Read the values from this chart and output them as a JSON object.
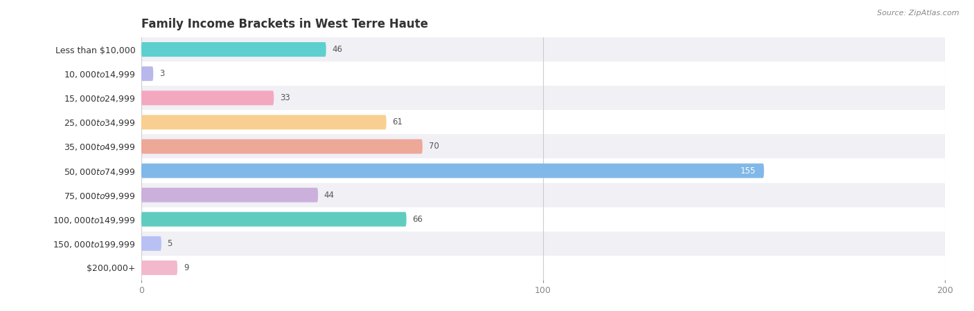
{
  "title": "Family Income Brackets in West Terre Haute",
  "source": "Source: ZipAtlas.com",
  "categories": [
    "Less than $10,000",
    "$10,000 to $14,999",
    "$15,000 to $24,999",
    "$25,000 to $34,999",
    "$35,000 to $49,999",
    "$50,000 to $74,999",
    "$75,000 to $99,999",
    "$100,000 to $149,999",
    "$150,000 to $199,999",
    "$200,000+"
  ],
  "values": [
    46,
    3,
    33,
    61,
    70,
    155,
    44,
    66,
    5,
    9
  ],
  "bar_colors": [
    "#5ecfcf",
    "#b8b8ec",
    "#f4a8c0",
    "#f8cf90",
    "#eda898",
    "#80b8e8",
    "#ccb0dc",
    "#60ccc0",
    "#b8c0f4",
    "#f4b8cc"
  ],
  "xlim": [
    0,
    200
  ],
  "xticks": [
    0,
    100,
    200
  ],
  "background_color": "#ffffff",
  "row_bg_even": "#f0f0f5",
  "row_bg_odd": "#ffffff",
  "title_fontsize": 12,
  "label_fontsize": 9,
  "value_fontsize": 8.5,
  "bar_height": 0.6
}
